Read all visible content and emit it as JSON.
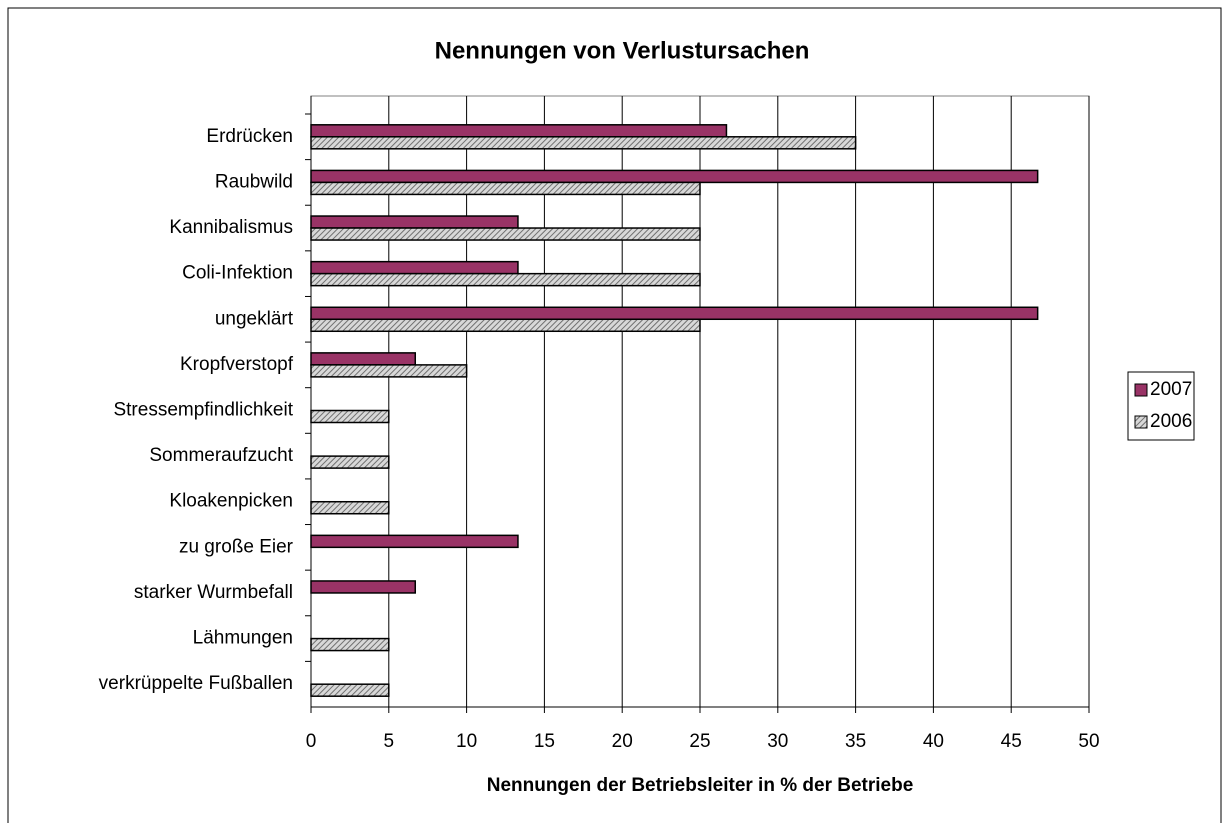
{
  "chart_data": {
    "type": "bar",
    "orientation": "horizontal",
    "title": "Nennungen von Verlustursachen",
    "xlabel": "Nennungen der Betriebsleiter in % der Betriebe",
    "categories": [
      "Erdrücken",
      "Raubwild",
      "Kannibalismus",
      "Coli-Infektion",
      "ungeklärt",
      "Kropfverstopf",
      "Stressempfindlichkeit",
      "Sommeraufzucht",
      "Kloakenpicken",
      "zu große Eier",
      "starker Wurmbefall",
      "Lähmungen",
      "verkrüppelte Fußballen"
    ],
    "series": [
      {
        "name": "2007",
        "color": "#993366",
        "values": [
          26.7,
          46.7,
          13.3,
          13.3,
          46.7,
          6.7,
          null,
          null,
          null,
          13.3,
          6.7,
          null,
          null
        ]
      },
      {
        "name": "2006",
        "color": "#b0b0b0",
        "values": [
          35,
          25,
          25,
          25,
          25,
          10,
          5,
          5,
          5,
          null,
          null,
          5,
          5
        ]
      }
    ],
    "xlim": [
      0,
      50
    ],
    "xticks": [
      0,
      5,
      10,
      15,
      20,
      25,
      30,
      35,
      40,
      45,
      50
    ],
    "grid": true,
    "legend": "right"
  }
}
